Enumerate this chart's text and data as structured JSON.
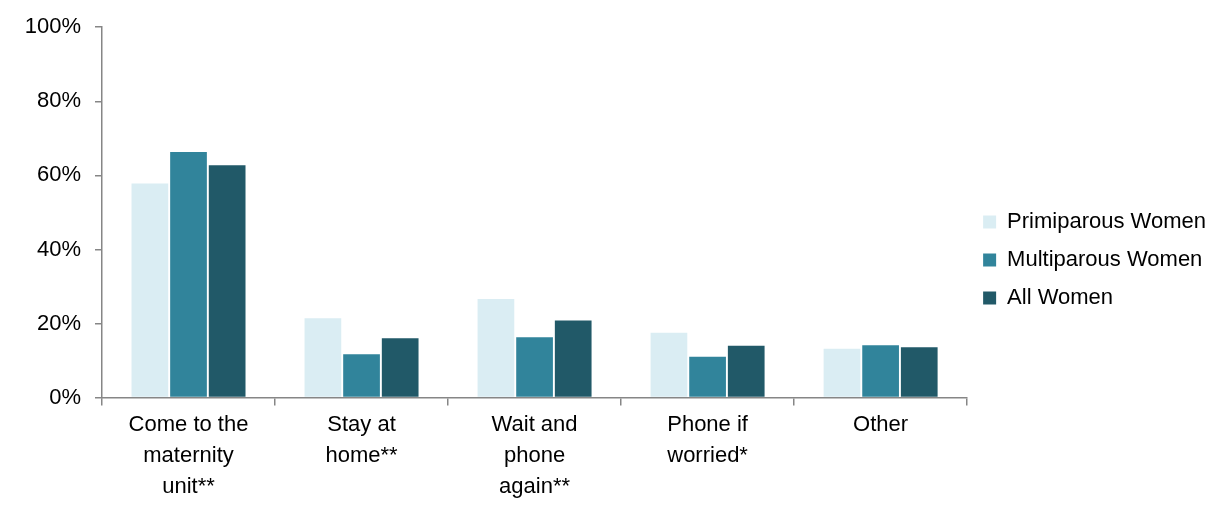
{
  "chart_data": {
    "type": "bar",
    "categories": [
      "Come to the maternity unit**",
      "Stay at home**",
      "Wait and phone again**",
      "Phone if worried*",
      "Other"
    ],
    "series": [
      {
        "name": "Primiparous Women",
        "color": "#daedf3",
        "values": [
          57.8,
          21.4,
          26.6,
          17.5,
          13.2
        ]
      },
      {
        "name": "Multiparous Women",
        "color": "#31849b",
        "values": [
          66.3,
          11.7,
          16.3,
          11.0,
          14.1
        ]
      },
      {
        "name": "All Women",
        "color": "#215968",
        "values": [
          62.7,
          16.0,
          20.8,
          14.0,
          13.6
        ]
      }
    ],
    "ylim": [
      0,
      100
    ],
    "yticks": [
      {
        "value": 0,
        "label": "0%"
      },
      {
        "value": 20,
        "label": "20%"
      },
      {
        "value": 40,
        "label": "40%"
      },
      {
        "value": 60,
        "label": "60%"
      },
      {
        "value": 80,
        "label": "80%"
      },
      {
        "value": 100,
        "label": "100%"
      }
    ],
    "grid": false,
    "legend": "right"
  }
}
